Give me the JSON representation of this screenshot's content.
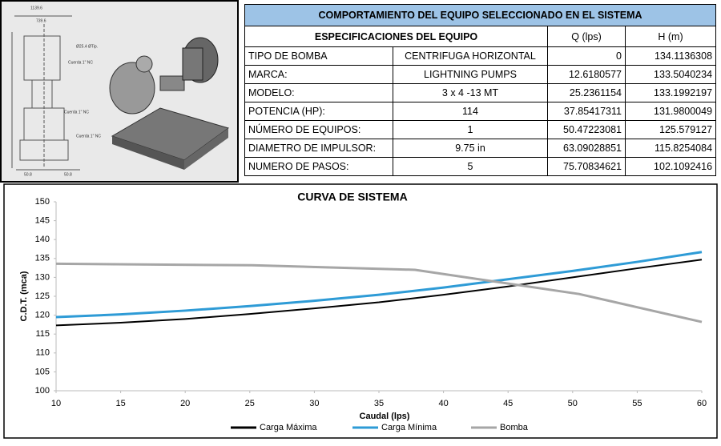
{
  "drawing": {
    "labels": [
      "1139.6",
      "739.6",
      "Ø25.4 ØTip.",
      "Cuerda 1\" NC",
      "Cuerda 1\" NC",
      "Cuerda 1\" NC",
      "50.8",
      "50.8"
    ]
  },
  "table": {
    "title": "COMPORTAMIENTO DEL EQUIPO SELECCIONADO EN EL SISTEMA",
    "header": [
      "ESPECIFICACIONES DEL EQUIPO",
      "Q (lps)",
      "H (m)"
    ],
    "rows": [
      [
        "TIPO DE BOMBA",
        "CENTRIFUGA HORIZONTAL",
        0,
        134.1136308
      ],
      [
        "MARCA:",
        "LIGHTNING PUMPS",
        12.6180577,
        133.5040234
      ],
      [
        "MODELO:",
        "3 x 4 -13 MT",
        25.2361154,
        133.1992197
      ],
      [
        "POTENCIA (HP):",
        "114",
        37.85417311,
        131.9800049
      ],
      [
        "NÚMERO DE EQUIPOS:",
        "1",
        50.47223081,
        125.579127
      ],
      [
        "DIAMETRO DE IMPULSOR:",
        "9.75 in",
        63.09028851,
        115.8254084
      ],
      [
        "NUMERO DE PASOS:",
        "5",
        75.70834621,
        102.1092416
      ]
    ]
  },
  "chart_data": {
    "type": "line",
    "title": "CURVA DE SISTEMA",
    "x_label": "Caudal (lps)",
    "y_label": "C.D.T. (mca)",
    "xlim": [
      10,
      60
    ],
    "xticks": [
      10,
      15,
      20,
      25,
      30,
      35,
      40,
      45,
      50,
      55,
      60
    ],
    "ylim": [
      100,
      150
    ],
    "yticks": [
      100,
      105,
      110,
      115,
      120,
      125,
      130,
      135,
      140,
      145,
      150
    ],
    "legend": "bottom",
    "series": [
      {
        "name": "Carga Máxima",
        "color": "#000000",
        "x": [
          10,
          15,
          20,
          25,
          30,
          35,
          40,
          45,
          50,
          55,
          60
        ],
        "values": [
          117.3,
          118,
          119,
          120.3,
          121.8,
          123.4,
          125.4,
          127.6,
          130,
          132.4,
          134.7
        ]
      },
      {
        "name": "Carga Mínima",
        "color": "#2e9bd6",
        "x": [
          10,
          15,
          20,
          25,
          30,
          35,
          40,
          45,
          50,
          55,
          60
        ],
        "values": [
          119.5,
          120.2,
          121.2,
          122.4,
          123.8,
          125.4,
          127.3,
          129.5,
          131.7,
          134.1,
          136.7
        ]
      },
      {
        "name": "Bomba",
        "color": "#a6a6a6",
        "x": [
          10,
          25.2,
          37.8,
          50.5,
          60
        ],
        "values": [
          133.6,
          133.2,
          132,
          125.6,
          118.2
        ]
      }
    ]
  }
}
